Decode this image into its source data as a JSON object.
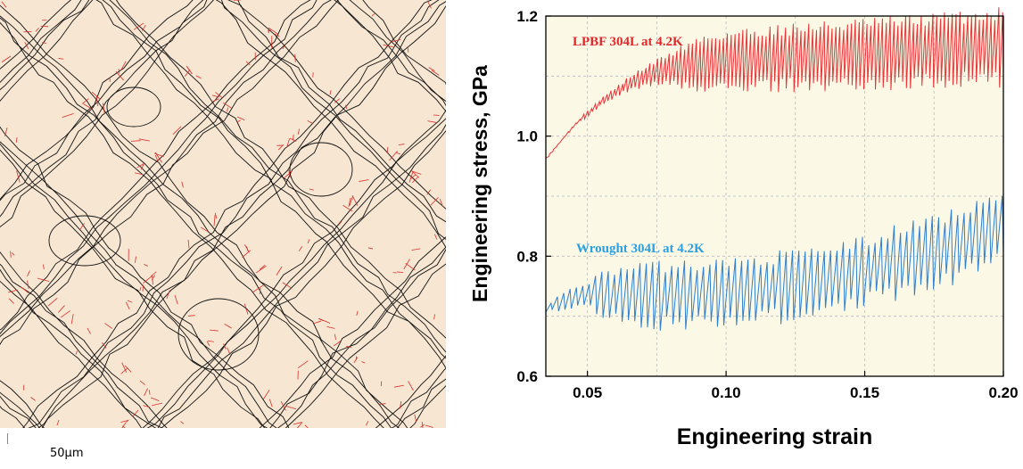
{
  "micrograph": {
    "scale_bar_label": "50µm",
    "background_color": "#f6e6d2",
    "boundary_colors": {
      "high_angle": "#111111",
      "low_angle": "#d9302a"
    }
  },
  "chart_data": {
    "type": "line",
    "title": "",
    "xlabel": "Engineering strain",
    "ylabel": "Engineering stress, GPa",
    "xlim": [
      0.035,
      0.2
    ],
    "ylim": [
      0.6,
      1.2
    ],
    "xticks": [
      0.05,
      0.1,
      0.15,
      0.2
    ],
    "xtick_labels": [
      "0.05",
      "0.10",
      "0.15",
      "0.20"
    ],
    "yticks": [
      0.6,
      0.8,
      1.0,
      1.2
    ],
    "ytick_labels": [
      "0.6",
      "0.8",
      "1.0",
      "1.2"
    ],
    "grid": true,
    "plot_background": "#fbf8e6",
    "series": [
      {
        "name": "LPBF 304L at 4.2K",
        "color": "#e8353a",
        "label_color": "#e0282d",
        "profile": [
          [
            0.035,
            0.965
          ],
          [
            0.045,
            1.02
          ],
          [
            0.055,
            1.06
          ],
          [
            0.065,
            1.09
          ],
          [
            0.075,
            1.11
          ],
          [
            0.085,
            1.12
          ],
          [
            0.1,
            1.13
          ],
          [
            0.12,
            1.135
          ],
          [
            0.14,
            1.14
          ],
          [
            0.16,
            1.145
          ],
          [
            0.18,
            1.15
          ],
          [
            0.2,
            1.155
          ]
        ],
        "amplitude_profile": [
          [
            0.035,
            0.004
          ],
          [
            0.06,
            0.018
          ],
          [
            0.075,
            0.04
          ],
          [
            0.09,
            0.085
          ],
          [
            0.12,
            0.095
          ],
          [
            0.16,
            0.1
          ],
          [
            0.2,
            0.11
          ]
        ],
        "cycles": 118
      },
      {
        "name": "Wrought 304L at 4.2K",
        "color": "#2f7fd0",
        "label_color": "#2aa0e0",
        "profile": [
          [
            0.035,
            0.715
          ],
          [
            0.045,
            0.735
          ],
          [
            0.055,
            0.74
          ],
          [
            0.08,
            0.74
          ],
          [
            0.1,
            0.745
          ],
          [
            0.12,
            0.755
          ],
          [
            0.14,
            0.77
          ],
          [
            0.16,
            0.795
          ],
          [
            0.18,
            0.82
          ],
          [
            0.2,
            0.86
          ]
        ],
        "amplitude_profile": [
          [
            0.035,
            0.02
          ],
          [
            0.05,
            0.05
          ],
          [
            0.06,
            0.09
          ],
          [
            0.1,
            0.1
          ],
          [
            0.15,
            0.1
          ],
          [
            0.2,
            0.12
          ]
        ],
        "cycles": 72
      }
    ]
  }
}
